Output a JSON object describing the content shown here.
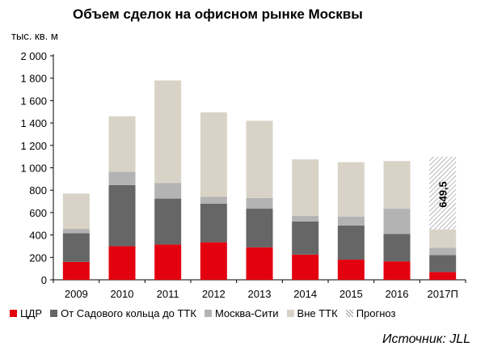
{
  "chart_data": {
    "type": "bar",
    "stacked": true,
    "title": "Объем сделок на офисном рынке Москвы",
    "ylabel": "тыс. кв. м",
    "ylim": [
      0,
      2000
    ],
    "yticks": [
      "0",
      "200",
      "400",
      "600",
      "800",
      "1 000",
      "1 200",
      "1 400",
      "1 600",
      "1 800",
      "2 000"
    ],
    "ytick_values": [
      0,
      200,
      400,
      600,
      800,
      1000,
      1200,
      1400,
      1600,
      1800,
      2000
    ],
    "categories": [
      "2009",
      "2010",
      "2011",
      "2012",
      "2013",
      "2014",
      "2015",
      "2016",
      "2017П"
    ],
    "series": [
      {
        "name": "ЦДР",
        "color": "#e3000f",
        "values": [
          160,
          300,
          315,
          335,
          290,
          225,
          180,
          165,
          70
        ]
      },
      {
        "name": "От Садового кольца до ТТК",
        "color": "#666666",
        "values": [
          255,
          545,
          410,
          345,
          345,
          295,
          305,
          245,
          150
        ]
      },
      {
        "name": "Москва-Сити",
        "color": "#b3b3b3",
        "values": [
          40,
          120,
          140,
          60,
          95,
          50,
          80,
          225,
          65
        ]
      },
      {
        "name": "Вне ТТК",
        "color": "#d9d3c7",
        "values": [
          315,
          495,
          915,
          755,
          690,
          505,
          485,
          425,
          165
        ]
      },
      {
        "name": "Прогноз",
        "color": "#9a9a9a",
        "pattern": "hatch",
        "values": [
          0,
          0,
          0,
          0,
          0,
          0,
          0,
          0,
          649.5
        ]
      }
    ],
    "annotations": [
      {
        "category": "2017П",
        "text": "649,5"
      }
    ],
    "legend_position": "bottom",
    "grid": false
  },
  "source": "Источник: JLL"
}
